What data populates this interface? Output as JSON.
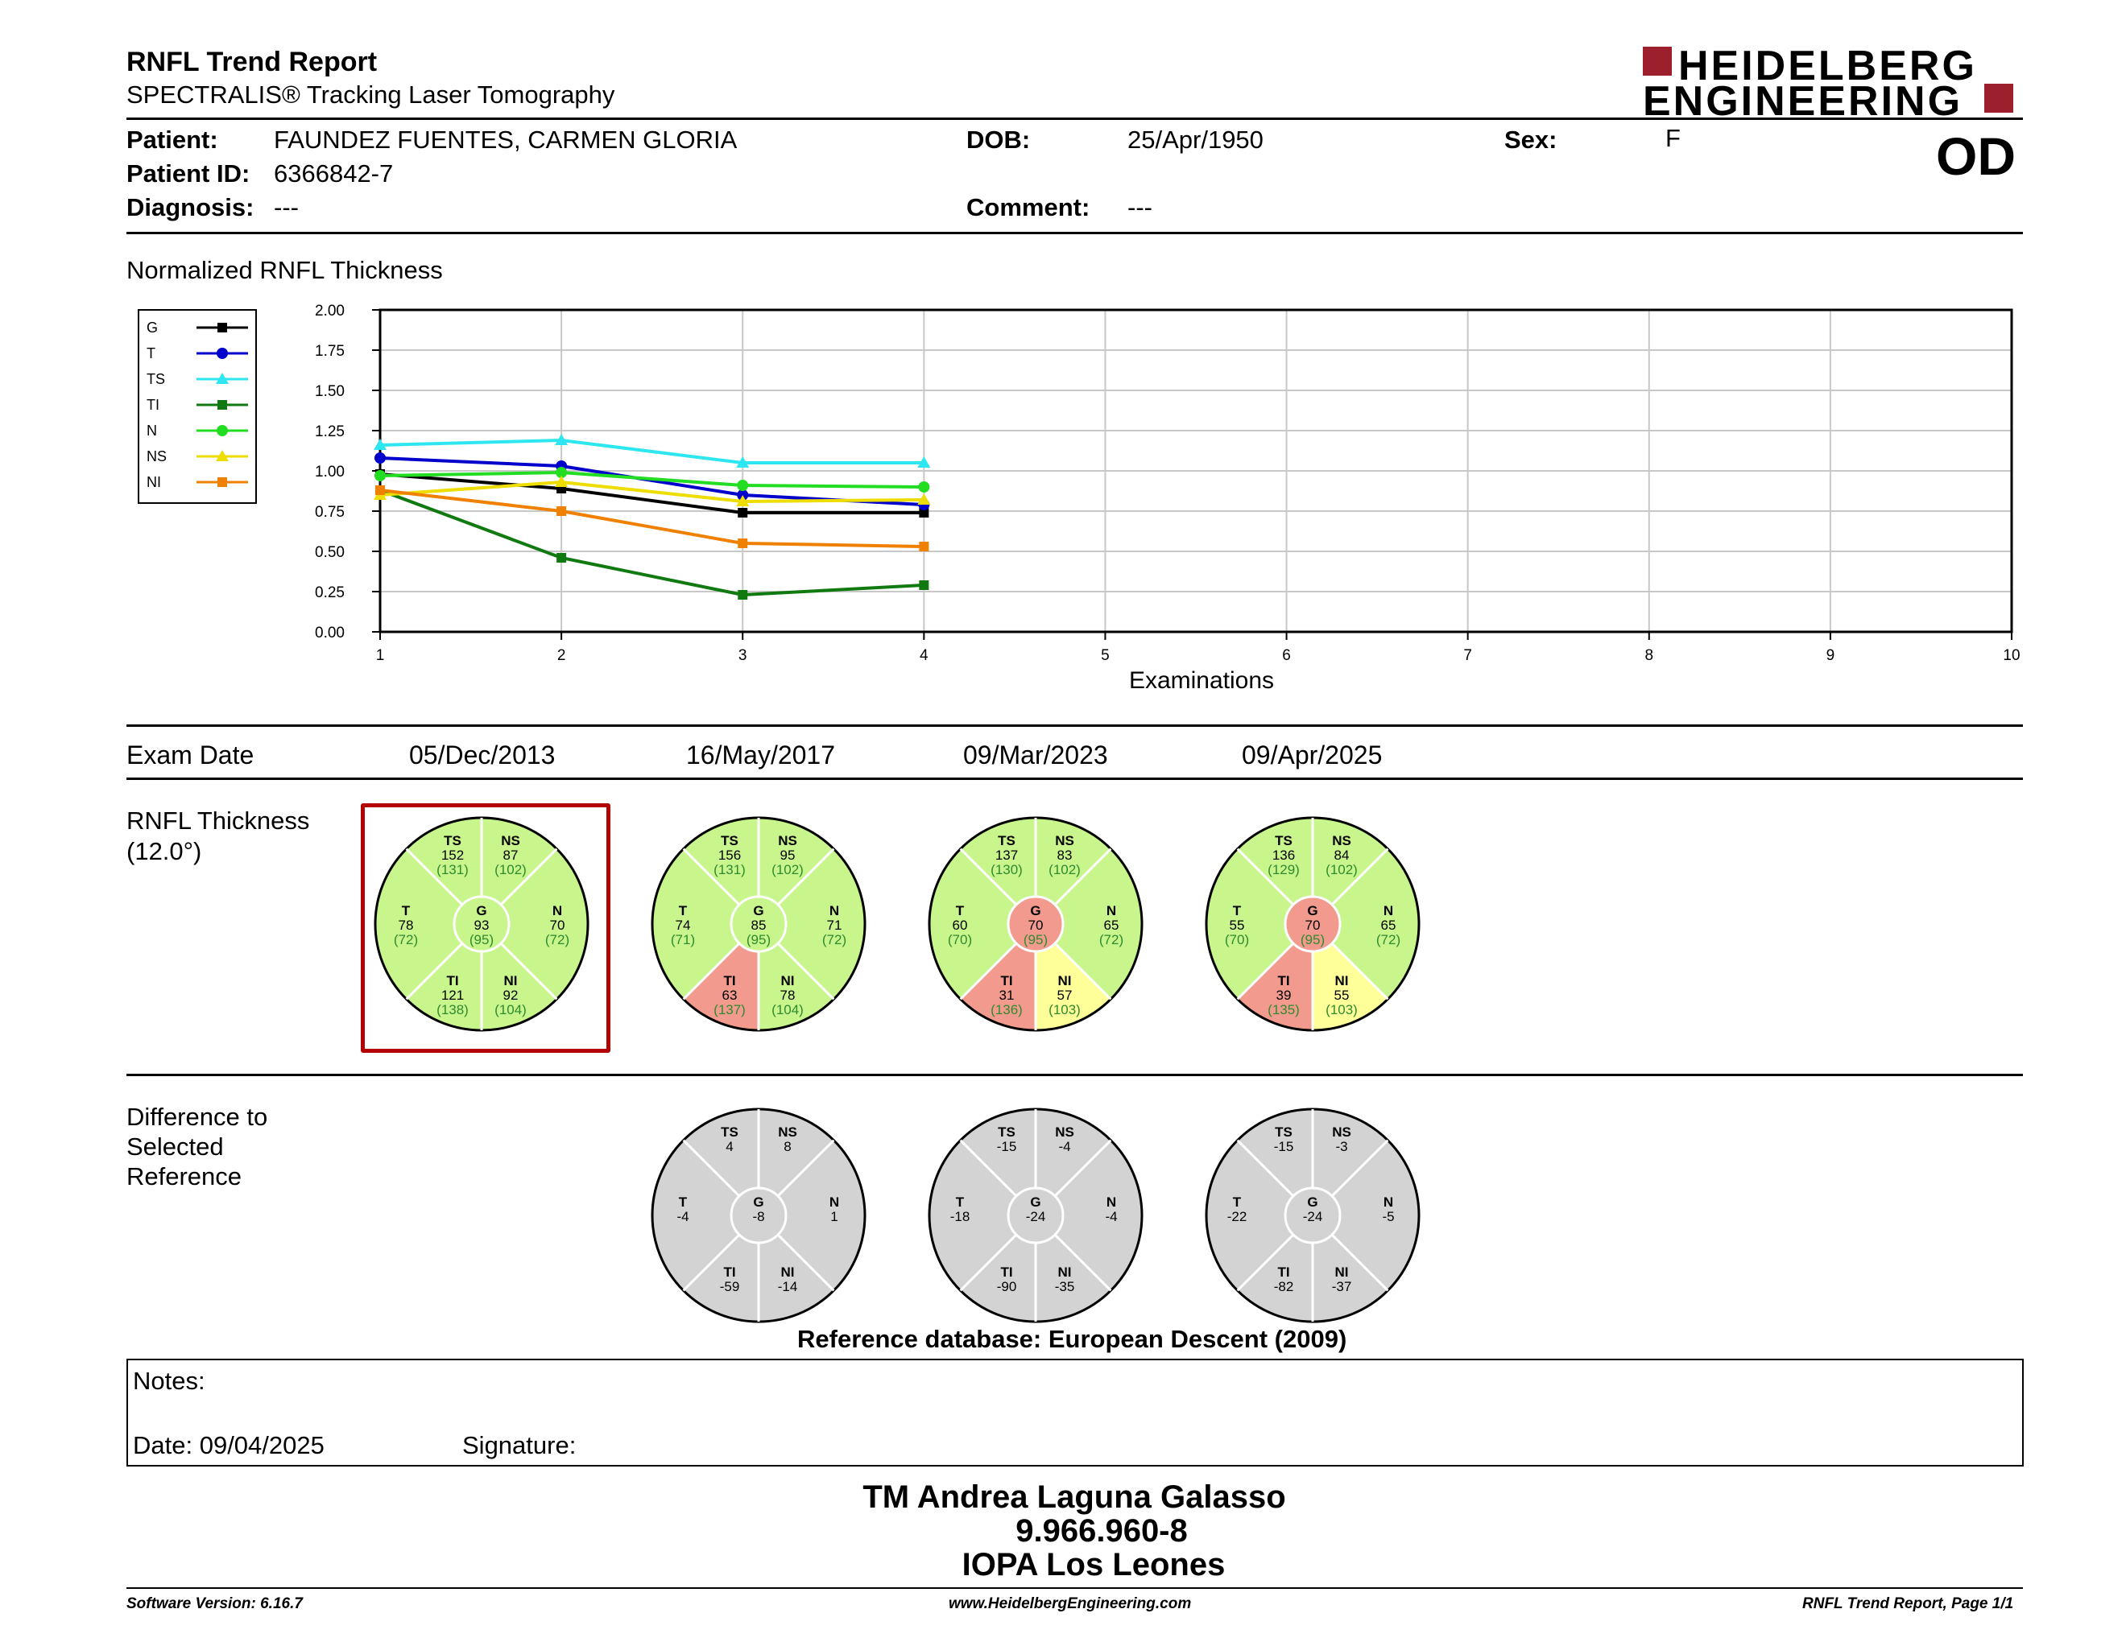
{
  "header": {
    "title": "RNFL Trend Report",
    "subtitle": "SPECTRALIS® Tracking Laser Tomography",
    "logo_line1": "HEIDELBERG",
    "logo_line2": "ENGINEERING",
    "eye": "OD"
  },
  "patient": {
    "patient_label": "Patient:",
    "patient_name": "FAUNDEZ FUENTES, CARMEN  GLORIA",
    "id_label": "Patient ID:",
    "id": "6366842-7",
    "diagnosis_label": "Diagnosis:",
    "diagnosis": "---",
    "dob_label": "DOB:",
    "dob": "25/Apr/1950",
    "comment_label": "Comment:",
    "comment": "---",
    "sex_label": "Sex:",
    "sex": "F"
  },
  "chart_title": "Normalized RNFL Thickness",
  "chart_data": {
    "type": "line",
    "xlabel": "Examinations",
    "ylabel": "",
    "xlim": [
      1,
      10
    ],
    "ylim": [
      0,
      2
    ],
    "x_ticks": [
      "1",
      "2",
      "3",
      "4",
      "5",
      "6",
      "7",
      "8",
      "9",
      "10"
    ],
    "y_ticks": [
      "0.00",
      "0.25",
      "0.50",
      "0.75",
      "1.00",
      "1.25",
      "1.50",
      "1.75",
      "2.00"
    ],
    "grid": true,
    "legend_position": "left",
    "x": [
      1,
      2,
      3,
      4
    ],
    "series": [
      {
        "name": "G",
        "color": "#000000",
        "marker": "square",
        "values": [
          0.98,
          0.89,
          0.74,
          0.74
        ]
      },
      {
        "name": "T",
        "color": "#0000cc",
        "marker": "circle",
        "values": [
          1.08,
          1.03,
          0.85,
          0.79
        ]
      },
      {
        "name": "TS",
        "color": "#2ee6f0",
        "marker": "triangle",
        "values": [
          1.16,
          1.19,
          1.05,
          1.05
        ]
      },
      {
        "name": "TI",
        "color": "#107a10",
        "marker": "square",
        "values": [
          0.88,
          0.46,
          0.23,
          0.29
        ]
      },
      {
        "name": "N",
        "color": "#22dd22",
        "marker": "circle",
        "values": [
          0.97,
          0.99,
          0.91,
          0.9
        ]
      },
      {
        "name": "NS",
        "color": "#eedd00",
        "marker": "triangle",
        "values": [
          0.85,
          0.93,
          0.81,
          0.82
        ]
      },
      {
        "name": "NI",
        "color": "#f08000",
        "marker": "square",
        "values": [
          0.88,
          0.75,
          0.55,
          0.53
        ]
      }
    ]
  },
  "exam_date_label": "Exam Date",
  "exam_dates": [
    "05/Dec/2013",
    "16/May/2017",
    "09/Mar/2023",
    "09/Apr/2025"
  ],
  "thickness_label_1": "RNFL Thickness",
  "thickness_label_2": "(12.0°)",
  "difference_label_1": "Difference to",
  "difference_label_2": "Selected",
  "difference_label_3": "Reference",
  "colors": {
    "normal": "#c8f58c",
    "borderline": "#ffff99",
    "outside": "#f39a8e",
    "difference": "#d3d3d3",
    "ref_text": "#2e8b2e",
    "selected_frame": "#b30000"
  },
  "thickness_charts": [
    {
      "TS": [
        "152",
        "(131)",
        "normal"
      ],
      "NS": [
        "87",
        "(102)",
        "normal"
      ],
      "T": [
        "78",
        "(72)",
        "normal"
      ],
      "G": [
        "93",
        "(95)",
        "normal"
      ],
      "N": [
        "70",
        "(72)",
        "normal"
      ],
      "TI": [
        "121",
        "(138)",
        "normal"
      ],
      "NI": [
        "92",
        "(104)",
        "normal"
      ]
    },
    {
      "TS": [
        "156",
        "(131)",
        "normal"
      ],
      "NS": [
        "95",
        "(102)",
        "normal"
      ],
      "T": [
        "74",
        "(71)",
        "normal"
      ],
      "G": [
        "85",
        "(95)",
        "normal"
      ],
      "N": [
        "71",
        "(72)",
        "normal"
      ],
      "TI": [
        "63",
        "(137)",
        "outside"
      ],
      "NI": [
        "78",
        "(104)",
        "normal"
      ]
    },
    {
      "TS": [
        "137",
        "(130)",
        "normal"
      ],
      "NS": [
        "83",
        "(102)",
        "normal"
      ],
      "T": [
        "60",
        "(70)",
        "normal"
      ],
      "G": [
        "70",
        "(95)",
        "outside"
      ],
      "N": [
        "65",
        "(72)",
        "normal"
      ],
      "TI": [
        "31",
        "(136)",
        "outside"
      ],
      "NI": [
        "57",
        "(103)",
        "borderline"
      ]
    },
    {
      "TS": [
        "136",
        "(129)",
        "normal"
      ],
      "NS": [
        "84",
        "(102)",
        "normal"
      ],
      "T": [
        "55",
        "(70)",
        "normal"
      ],
      "G": [
        "70",
        "(95)",
        "outside"
      ],
      "N": [
        "65",
        "(72)",
        "normal"
      ],
      "TI": [
        "39",
        "(135)",
        "outside"
      ],
      "NI": [
        "55",
        "(103)",
        "borderline"
      ]
    }
  ],
  "difference_charts": [
    {
      "TS": "4",
      "NS": "8",
      "T": "-4",
      "G": "-8",
      "N": "1",
      "TI": "-59",
      "NI": "-14"
    },
    {
      "TS": "-15",
      "NS": "-4",
      "T": "-18",
      "G": "-24",
      "N": "-4",
      "TI": "-90",
      "NI": "-35"
    },
    {
      "TS": "-15",
      "NS": "-3",
      "T": "-22",
      "G": "-24",
      "N": "-5",
      "TI": "-82",
      "NI": "-37"
    }
  ],
  "reference_db": "Reference database: European Descent (2009)",
  "notes": {
    "notes_label": "Notes:",
    "date_label": "Date: 09/04/2025",
    "signature_label": "Signature:"
  },
  "signature": {
    "line1": "TM Andrea Laguna Galasso",
    "line2": "9.966.960-8",
    "line3": "IOPA Los Leones"
  },
  "footer": {
    "software": "Software Version: 6.16.7",
    "website": "www.HeidelbergEngineering.com",
    "page": "RNFL Trend Report, Page 1/1"
  }
}
